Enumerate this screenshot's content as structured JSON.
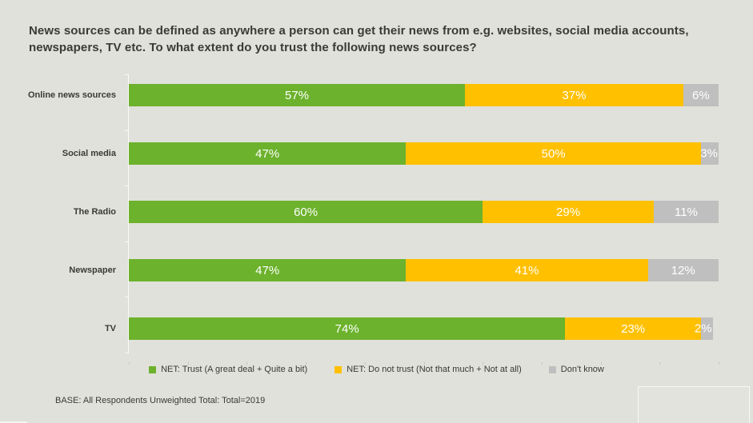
{
  "title": "News sources can be defined as anywhere a person can get their news from e.g. websites, social media accounts, newspapers, TV etc.  To what extent do you trust the following news sources?",
  "base_note": "BASE: All Respondents Unweighted Total: Total=2019",
  "colors": {
    "background": "#E0E1DA",
    "text": "#3A3A37",
    "bar_label": "#FFFFFF",
    "trust_green": "#6CB22C",
    "distrust_yellow": "#FFC000",
    "dont_know_gray": "#BFBFBF"
  },
  "legend": [
    {
      "label": "NET: Trust (A great deal + Quite a bit)",
      "color": "#6CB22C"
    },
    {
      "label": "NET: Do not trust (Not that much + Not at all)",
      "color": "#FFC000"
    },
    {
      "label": "Don't know",
      "color": "#BFBFBF"
    }
  ],
  "chart_data": {
    "type": "bar",
    "orientation": "horizontal",
    "stacked": true,
    "grid": false,
    "legend_position": "bottom",
    "xlim": [
      0,
      100
    ],
    "value_label_format": "{value}%",
    "categories": [
      "Online news sources",
      "Social media",
      "The Radio",
      "Newspaper",
      "TV"
    ],
    "series": [
      {
        "name": "NET: Trust (A great deal + Quite a bit)",
        "color": "#6CB22C",
        "values": [
          57,
          47,
          60,
          47,
          74
        ]
      },
      {
        "name": "NET: Do not trust (Not that much + Not at all)",
        "color": "#FFC000",
        "values": [
          37,
          50,
          29,
          41,
          23
        ]
      },
      {
        "name": "Don't know",
        "color": "#BFBFBF",
        "values": [
          6,
          3,
          11,
          12,
          2
        ]
      }
    ]
  }
}
